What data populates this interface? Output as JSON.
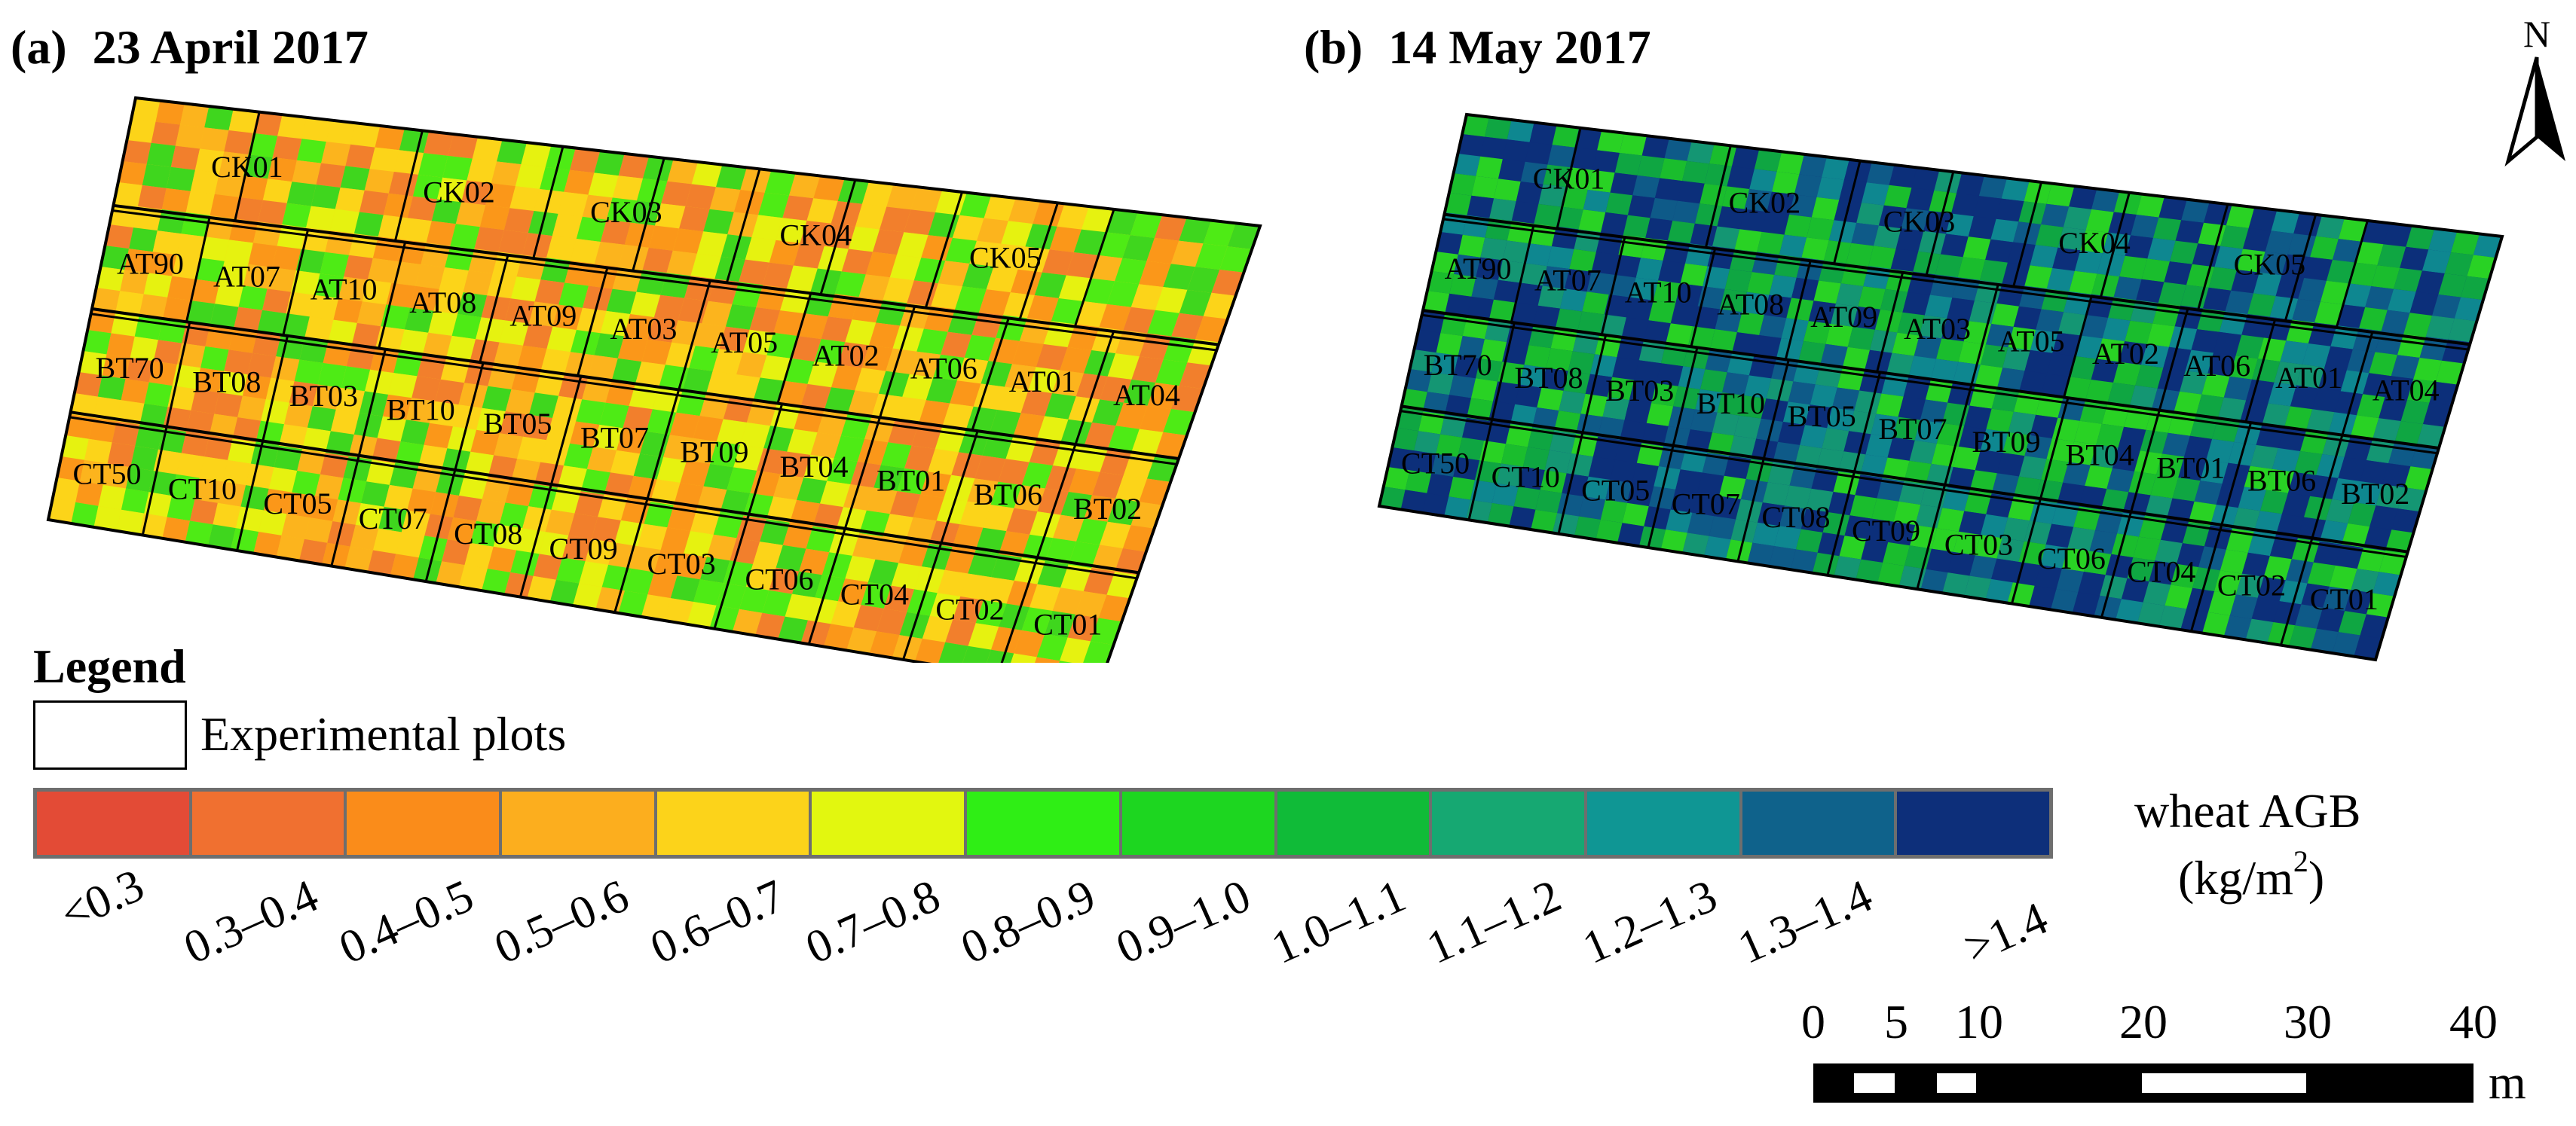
{
  "panels": [
    {
      "tag": "(a)",
      "date": "23 April 2017"
    },
    {
      "tag": "(b)",
      "date": "14 May 2017"
    }
  ],
  "plots": {
    "row1": [
      "CK01",
      "CK02",
      "CK03",
      "CK04",
      "CK05"
    ],
    "row2": [
      "AT90",
      "AT07",
      "AT10",
      "AT08",
      "AT09",
      "AT03",
      "AT05",
      "AT02",
      "AT06",
      "AT01",
      "AT04"
    ],
    "row3": [
      "BT70",
      "BT08",
      "BT03",
      "BT10",
      "BT05",
      "BT07",
      "BT09",
      "BT04",
      "BT01",
      "BT06",
      "BT02"
    ],
    "row4": [
      "CT50",
      "CT10",
      "CT05",
      "CT07",
      "CT08",
      "CT09",
      "CT03",
      "CT06",
      "CT04",
      "CT02",
      "CT01"
    ]
  },
  "legend": {
    "heading": "Legend",
    "plots_label": "Experimental plots",
    "variable": "wheat AGB",
    "unit_prefix": "(kg/m",
    "unit_exp": "2",
    "unit_suffix": ")",
    "classes": [
      {
        "label": "<0.3",
        "color": "#e34b36"
      },
      {
        "label": "0.3–0.4",
        "color": "#f07030"
      },
      {
        "label": "0.4–0.5",
        "color": "#fa8c1a"
      },
      {
        "label": "0.5–0.6",
        "color": "#fcae1e"
      },
      {
        "label": "0.6–0.7",
        "color": "#fcd31a"
      },
      {
        "label": "0.7–0.8",
        "color": "#e2f70f"
      },
      {
        "label": "0.8–0.9",
        "color": "#2fee15"
      },
      {
        "label": "0.9–1.0",
        "color": "#1dd620"
      },
      {
        "label": "1.0–1.1",
        "color": "#10bb38"
      },
      {
        "label": "1.1–1.2",
        "color": "#16a872"
      },
      {
        "label": "1.2–1.3",
        "color": "#0f9694"
      },
      {
        "label": "1.3–1.4",
        "color": "#0f628b"
      },
      {
        "label": ">1.4",
        "color": "#0d2f7a"
      }
    ]
  },
  "scale": {
    "ticks": [
      "0",
      "5",
      "10",
      "20",
      "30",
      "40"
    ],
    "unit": "m"
  },
  "north": "N"
}
